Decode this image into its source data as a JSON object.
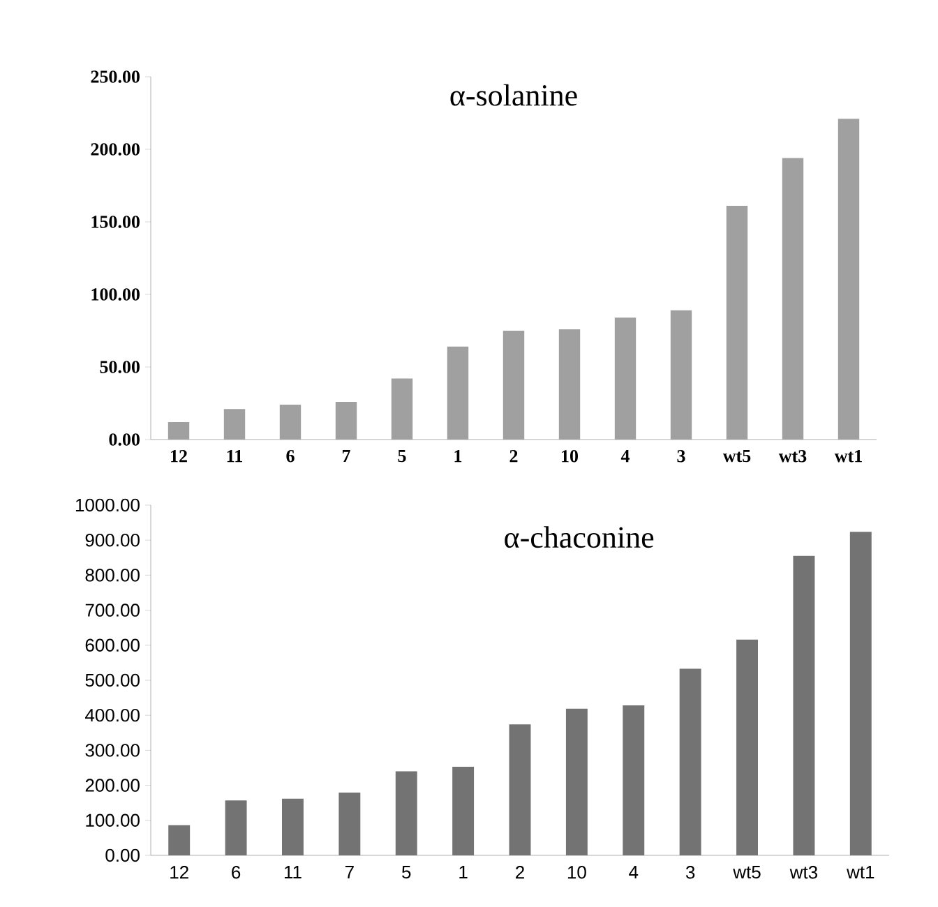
{
  "chart_data": [
    {
      "type": "bar",
      "title": "α-solanine",
      "categories": [
        "12",
        "11",
        "6",
        "7",
        "5",
        "1",
        "2",
        "10",
        "4",
        "3",
        "wt5",
        "wt3",
        "wt1"
      ],
      "values": [
        12,
        21,
        24,
        26,
        42,
        64,
        75,
        76,
        84,
        89,
        161,
        194,
        221
      ],
      "color": "#a0a0a0",
      "ylim": [
        0,
        250
      ],
      "yticks": [
        {
          "value": 0,
          "label": "0.00"
        },
        {
          "value": 50,
          "label": "50.00"
        },
        {
          "value": 100,
          "label": "100.00"
        },
        {
          "value": 150,
          "label": "150.00"
        },
        {
          "value": 200,
          "label": "200.00"
        },
        {
          "value": 250,
          "label": "250.00"
        }
      ]
    },
    {
      "type": "bar",
      "title": "α-chaconine",
      "categories": [
        "12",
        "6",
        "11",
        "7",
        "5",
        "1",
        "2",
        "10",
        "4",
        "3",
        "wt5",
        "wt3",
        "wt1"
      ],
      "values": [
        86,
        157,
        162,
        179,
        240,
        253,
        374,
        419,
        428,
        533,
        616,
        855,
        924
      ],
      "color": "#737373",
      "ylim": [
        0,
        1000
      ],
      "yticks": [
        {
          "value": 0,
          "label": "0.00"
        },
        {
          "value": 100,
          "label": "100.00"
        },
        {
          "value": 200,
          "label": "200.00"
        },
        {
          "value": 300,
          "label": "300.00"
        },
        {
          "value": 400,
          "label": "400.00"
        },
        {
          "value": 500,
          "label": "500.00"
        },
        {
          "value": 600,
          "label": "600.00"
        },
        {
          "value": 700,
          "label": "700.00"
        },
        {
          "value": 800,
          "label": "800.00"
        },
        {
          "value": 900,
          "label": "900.00"
        },
        {
          "value": 1000,
          "label": "1000.00"
        }
      ]
    }
  ]
}
